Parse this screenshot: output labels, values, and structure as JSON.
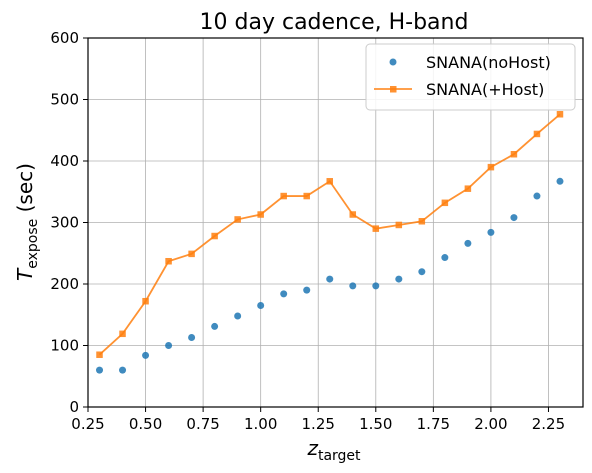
{
  "chart_data": {
    "type": "line",
    "title": "10 day cadence, H-band",
    "xlabel": {
      "main": "z",
      "sub": "target"
    },
    "ylabel": {
      "main": "T",
      "sub": "expose",
      "unit": " (sec)"
    },
    "xlim": [
      0.25,
      2.4
    ],
    "ylim": [
      0,
      600
    ],
    "xticks": [
      0.25,
      0.5,
      0.75,
      1.0,
      1.25,
      1.5,
      1.75,
      2.0,
      2.25
    ],
    "xtick_labels": [
      "0.25",
      "0.50",
      "0.75",
      "1.00",
      "1.25",
      "1.50",
      "1.75",
      "2.00",
      "2.25"
    ],
    "yticks": [
      0,
      100,
      200,
      300,
      400,
      500,
      600
    ],
    "ytick_labels": [
      "0",
      "100",
      "200",
      "300",
      "400",
      "500",
      "600"
    ],
    "grid": true,
    "legend_position": "top-right",
    "x": [
      0.3,
      0.4,
      0.5,
      0.6,
      0.7,
      0.8,
      0.9,
      1.0,
      1.1,
      1.2,
      1.3,
      1.4,
      1.5,
      1.6,
      1.7,
      1.8,
      1.9,
      2.0,
      2.1,
      2.2,
      2.3
    ],
    "series": [
      {
        "name": "SNANA(noHost)",
        "style": "markers",
        "marker": "circle",
        "color": "#1f77b4",
        "values": [
          60,
          60,
          84,
          100,
          113,
          131,
          148,
          165,
          184,
          190,
          208,
          197,
          197,
          208,
          220,
          243,
          266,
          284,
          308,
          343,
          367
        ]
      },
      {
        "name": "SNANA(+Host)",
        "style": "line+markers",
        "marker": "square",
        "color": "#ff7f0e",
        "values": [
          85,
          119,
          172,
          237,
          249,
          278,
          305,
          313,
          343,
          343,
          367,
          313,
          290,
          296,
          302,
          332,
          355,
          390,
          411,
          444,
          476
        ]
      }
    ]
  }
}
